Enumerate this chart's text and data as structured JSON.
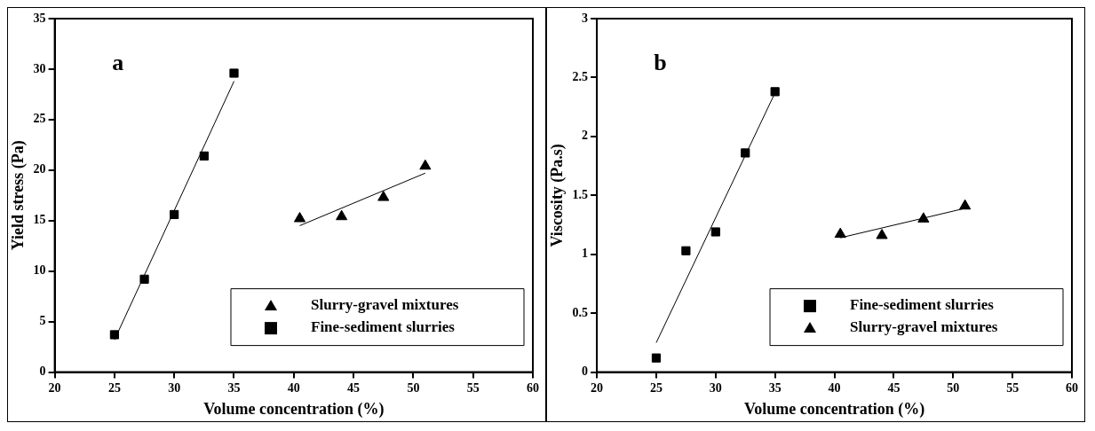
{
  "chart_data": [
    {
      "type": "scatter",
      "xlabel": "Volume concentration (%)",
      "ylabel": "Yield stress (Pa)",
      "annotations": [
        "a"
      ],
      "xlim": [
        20,
        60
      ],
      "xticks": [
        20,
        25,
        30,
        35,
        40,
        45,
        50,
        55,
        60
      ],
      "ylim": [
        0,
        35
      ],
      "yticks": [
        0,
        5,
        10,
        15,
        20,
        25,
        30,
        35
      ],
      "grid": false,
      "legend": "bottom right",
      "series": [
        {
          "name": "Slurry-gravel mixtures",
          "color": "#000000",
          "marker": "triangle",
          "x": [
            40.5,
            44,
            47.5,
            51
          ],
          "values": [
            15.2,
            15.4,
            17.3,
            20.4
          ]
        },
        {
          "name": "Fine-sediment slurries",
          "color": "#000000",
          "marker": "square",
          "x": [
            25,
            27.5,
            30,
            32.5,
            35
          ],
          "values": [
            3.7,
            9.2,
            15.6,
            21.4,
            29.6
          ]
        },
        {
          "type": "line",
          "color": "#000000",
          "marker": "none",
          "x": [
            25,
            35
          ],
          "values": [
            3.2,
            28.8
          ]
        },
        {
          "type": "line",
          "color": "#000000",
          "marker": "none",
          "x": [
            40.5,
            51
          ],
          "values": [
            14.5,
            19.7
          ]
        }
      ]
    },
    {
      "type": "scatter",
      "xlabel": "Volume concentration (%)",
      "ylabel": "Viscosity (Pa.s)",
      "annotations": [
        "b"
      ],
      "xlim": [
        20,
        60
      ],
      "xticks": [
        20,
        25,
        30,
        35,
        40,
        45,
        50,
        55,
        60
      ],
      "ylim": [
        0,
        3
      ],
      "yticks": [
        0,
        0.5,
        1,
        1.5,
        2,
        2.5,
        3
      ],
      "grid": false,
      "legend": "bottom right",
      "series": [
        {
          "name": "Fine-sediment slurries",
          "color": "#000000",
          "marker": "square",
          "x": [
            25,
            27.5,
            30,
            32.5,
            35
          ],
          "values": [
            0.12,
            1.03,
            1.19,
            1.86,
            2.38
          ]
        },
        {
          "name": "Slurry-gravel mixtures",
          "color": "#000000",
          "marker": "triangle",
          "x": [
            40.5,
            44,
            47.5,
            51
          ],
          "values": [
            1.17,
            1.16,
            1.3,
            1.41
          ]
        },
        {
          "type": "line",
          "color": "#000000",
          "marker": "none",
          "x": [
            25,
            35
          ],
          "values": [
            0.25,
            2.37
          ]
        },
        {
          "type": "line",
          "color": "#000000",
          "marker": "none",
          "x": [
            40.5,
            51
          ],
          "values": [
            1.14,
            1.39
          ]
        }
      ]
    }
  ]
}
